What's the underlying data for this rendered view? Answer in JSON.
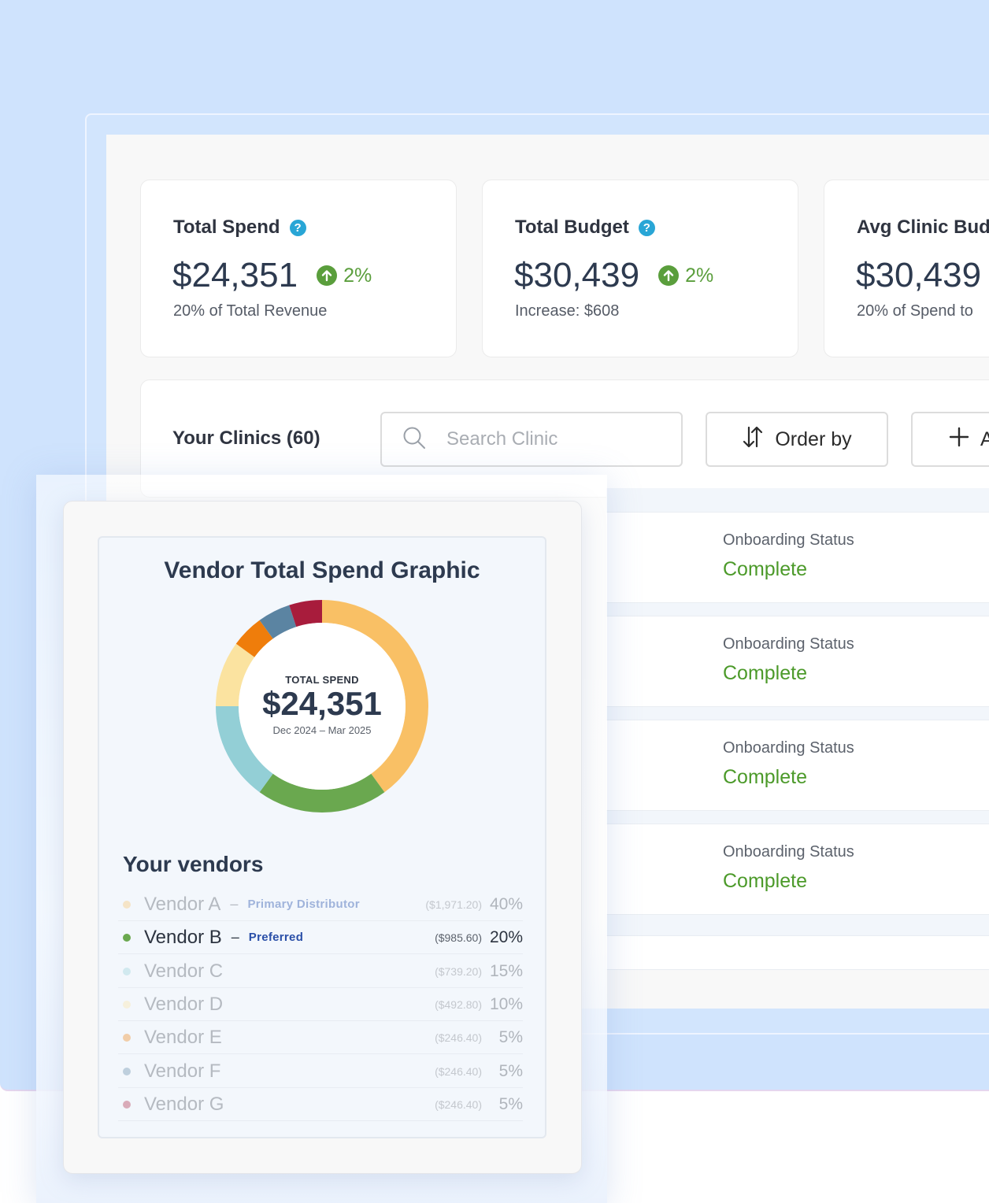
{
  "stats": [
    {
      "title": "Total Spend",
      "value": "$24,351",
      "trend": "2%",
      "subtitle": "20% of Total Revenue",
      "help": "?"
    },
    {
      "title": "Total Budget",
      "value": "$30,439",
      "trend": "2%",
      "subtitle": "Increase: $608",
      "help": "?"
    },
    {
      "title": "Avg Clinic Bud",
      "value": "$30,439",
      "subtitle": "20% of Spend to"
    }
  ],
  "clinics": {
    "title": "Your Clinics (60)",
    "search_placeholder": "Search Clinic",
    "order_label": "Order by",
    "add_label": "A"
  },
  "status_rows": [
    {
      "label": "Onboarding Status",
      "value": "Complete"
    },
    {
      "label": "Onboarding Status",
      "value": "Complete"
    },
    {
      "label": "Onboarding Status",
      "value": "Complete"
    },
    {
      "label": "Onboarding Status",
      "value": "Complete"
    }
  ],
  "vendor_card": {
    "title": "Vendor Total Spend Graphic",
    "donut_caption": "TOTAL SPEND",
    "donut_total": "$24,351",
    "donut_range": "Dec 2024 – Mar 2025",
    "vendors_heading": "Your vendors",
    "vendors": [
      {
        "name": "Vendor A",
        "tag": "Primary Distributor",
        "amount": "($1,971.20)",
        "pct": "40%",
        "color": "#f9c065",
        "state": "muted"
      },
      {
        "name": "Vendor B",
        "tag": "Preferred",
        "amount": "($985.60)",
        "pct": "20%",
        "color": "#6aa84f",
        "state": "active"
      },
      {
        "name": "Vendor C",
        "amount": "($739.20)",
        "pct": "15%",
        "color": "#93cfd6",
        "state": "muted"
      },
      {
        "name": "Vendor D",
        "amount": "($492.80)",
        "pct": "10%",
        "color": "#fbe3a0",
        "state": "muted"
      },
      {
        "name": "Vendor E",
        "amount": "($246.40)",
        "pct": "5%",
        "color": "#ef7d0b",
        "state": "muted"
      },
      {
        "name": "Vendor F",
        "amount": "($246.40)",
        "pct": "5%",
        "color": "#5b84a2",
        "state": "muted"
      },
      {
        "name": "Vendor G",
        "amount": "($246.40)",
        "pct": "5%",
        "color": "#a81c3c",
        "state": "muted"
      }
    ]
  },
  "chart_data": {
    "type": "pie",
    "categories": [
      "Vendor A",
      "Vendor B",
      "Vendor C",
      "Vendor D",
      "Vendor E",
      "Vendor F",
      "Vendor G"
    ],
    "values": [
      40,
      20,
      15,
      10,
      5,
      5,
      5
    ],
    "colors": [
      "#f9c065",
      "#6aa84f",
      "#93cfd6",
      "#fbe3a0",
      "#ef7d0b",
      "#5b84a2",
      "#a81c3c"
    ],
    "title": "Vendor Total Spend Graphic",
    "donut": true
  }
}
